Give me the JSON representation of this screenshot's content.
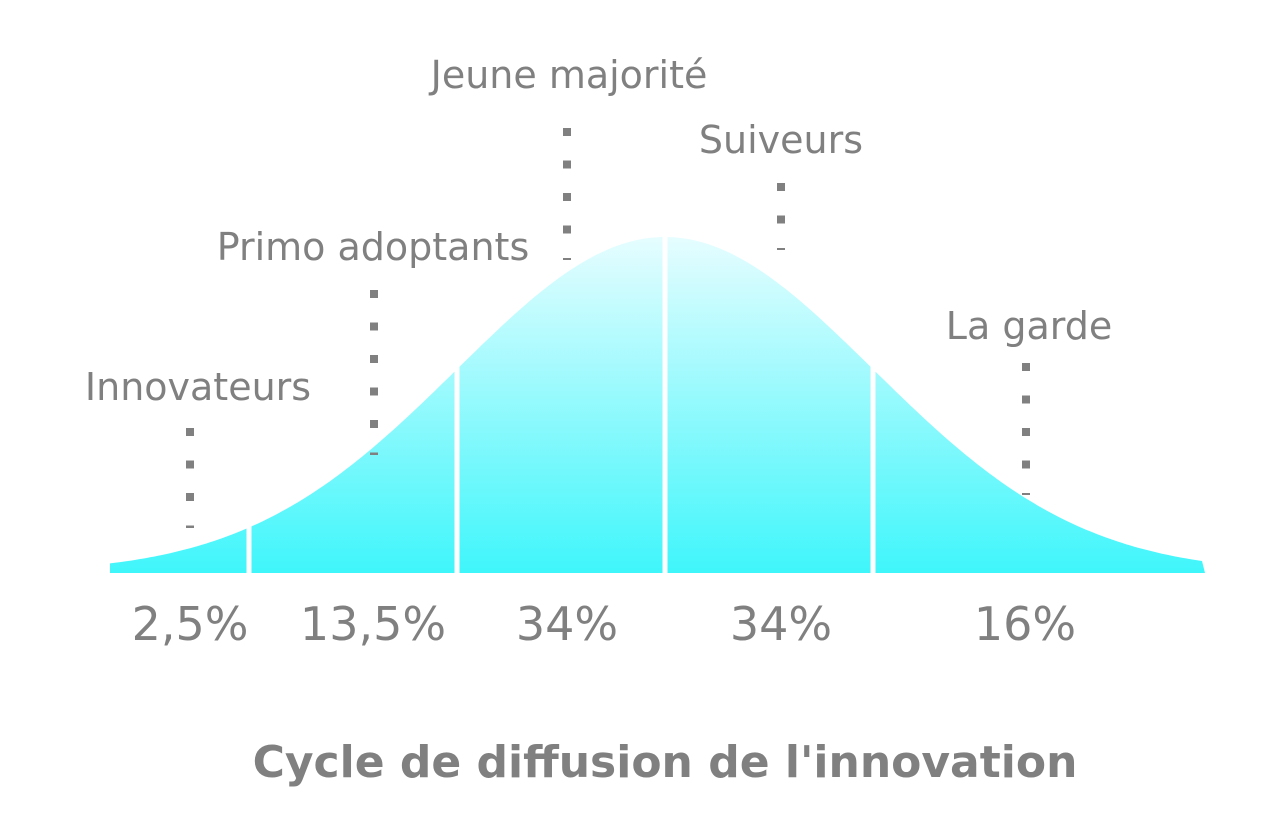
{
  "chart_data": {
    "type": "area",
    "title": "Cycle de diffusion de l'innovation",
    "curve": "normal-distribution",
    "segments": [
      {
        "name": "Innovateurs",
        "share": "2,5%",
        "value": 2.5
      },
      {
        "name": "Primo adoptants",
        "share": "13,5%",
        "value": 13.5
      },
      {
        "name": "Jeune majorité",
        "share": "34%",
        "value": 34
      },
      {
        "name": "Suiveurs",
        "share": "34%",
        "value": 34
      },
      {
        "name": "La garde",
        "share": "16%",
        "value": 16
      }
    ],
    "boundaries_sd": [
      -2,
      -1,
      0,
      1
    ],
    "x_range_sd": [
      -3,
      3
    ]
  },
  "colors": {
    "fill_top": "#e6fdff",
    "fill_bottom": "#3ff6fb",
    "divider": "#ffffff",
    "text": "#808080"
  }
}
